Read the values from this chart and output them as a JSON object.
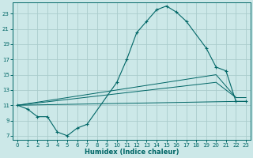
{
  "xlabel": "Humidex (Indice chaleur)",
  "ylabel": "",
  "background_color": "#cce8e8",
  "grid_color": "#aacccc",
  "line_color": "#006666",
  "xlim": [
    -0.5,
    23.5
  ],
  "ylim": [
    6.5,
    24.5
  ],
  "yticks": [
    7,
    9,
    11,
    13,
    15,
    17,
    19,
    21,
    23
  ],
  "xticks": [
    0,
    1,
    2,
    3,
    4,
    5,
    6,
    7,
    8,
    9,
    10,
    11,
    12,
    13,
    14,
    15,
    16,
    17,
    18,
    19,
    20,
    21,
    22,
    23
  ],
  "series": [
    {
      "x": [
        0,
        1,
        2,
        3,
        4,
        5,
        6,
        7,
        10,
        11,
        12,
        13,
        14,
        15,
        16,
        17,
        19,
        20,
        21,
        22,
        23
      ],
      "y": [
        11,
        10.5,
        9.5,
        9.5,
        7.5,
        7,
        8,
        8.5,
        14,
        17,
        20.5,
        22,
        23.5,
        24,
        23.2,
        22,
        18.5,
        16,
        15.5,
        11.5,
        11.5
      ],
      "marker": true
    },
    {
      "x": [
        0,
        22,
        23
      ],
      "y": [
        11,
        11.5,
        11.5
      ],
      "marker": false
    },
    {
      "x": [
        0,
        20,
        22,
        23
      ],
      "y": [
        11,
        15,
        12,
        12
      ],
      "marker": false
    },
    {
      "x": [
        0,
        20,
        22,
        23
      ],
      "y": [
        11,
        14,
        12,
        12
      ],
      "marker": false
    }
  ]
}
